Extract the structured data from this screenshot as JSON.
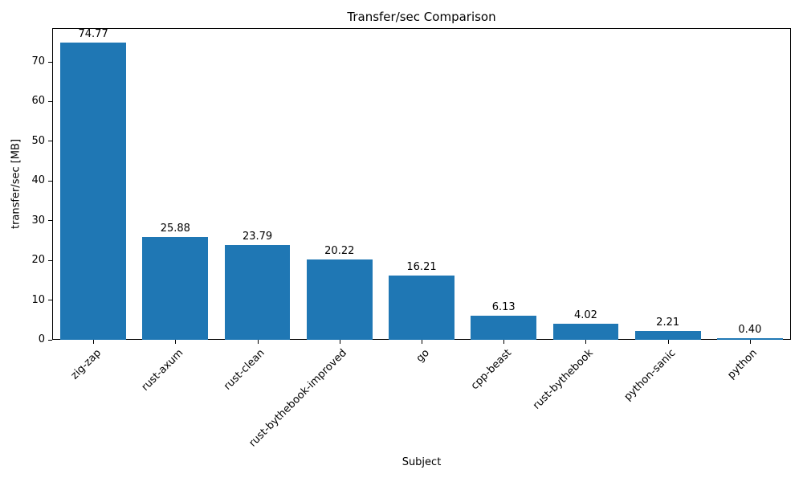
{
  "chart_data": {
    "type": "bar",
    "title": "Transfer/sec Comparison",
    "xlabel": "Subject",
    "ylabel": "transfer/sec [MB]",
    "categories": [
      "zig-zap",
      "rust-axum",
      "rust-clean",
      "rust-bythebook-improved",
      "go",
      "cpp-beast",
      "rust-bythebook",
      "python-sanic",
      "python"
    ],
    "values": [
      74.77,
      25.88,
      23.79,
      20.22,
      16.21,
      6.13,
      4.02,
      2.21,
      0.4
    ],
    "value_labels": [
      "74.77",
      "25.88",
      "23.79",
      "20.22",
      "16.21",
      "6.13",
      "4.02",
      "2.21",
      "0.40"
    ],
    "bar_color": "#1f77b4",
    "background_color": "#ffffff",
    "ylim": [
      0,
      78.5
    ],
    "yticks": [
      0,
      10,
      20,
      30,
      40,
      50,
      60,
      70
    ],
    "grid": false,
    "legend": "none",
    "x_tick_rotation_deg": 45
  }
}
